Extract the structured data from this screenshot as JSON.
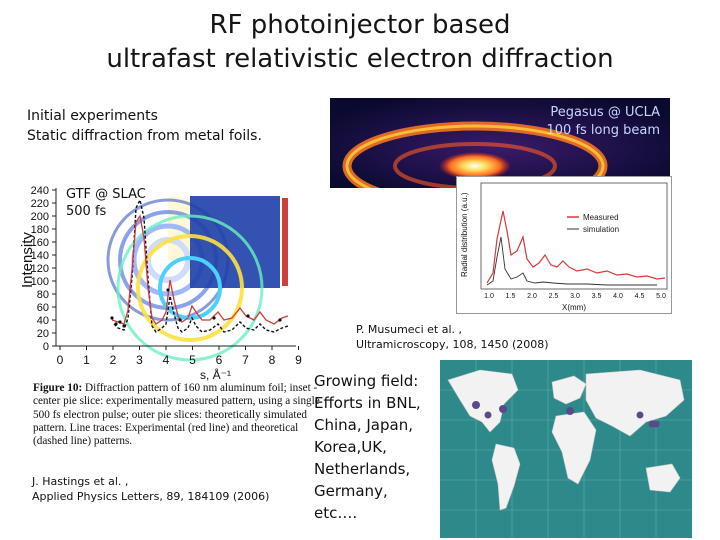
{
  "title": {
    "line1": "RF photoinjector based",
    "line2": "ultrafast relativistic electron diffraction"
  },
  "intro": {
    "line1": "Initial experiments",
    "line2": "Static diffraction from metal foils."
  },
  "beam_image": {
    "label_line1": "Pegasus @ UCLA",
    "label_line2": "100 fs long beam"
  },
  "radial_plot": {
    "ylabel": "Radial distribution (a.u.)",
    "xlabel": "X(mm)",
    "legend": [
      "Measured",
      "simulation"
    ],
    "xticks": [
      "1.0",
      "1.5",
      "2.0",
      "2.5",
      "3.0",
      "3.5",
      "4.0",
      "4.5",
      "5.0"
    ]
  },
  "intensity_plot": {
    "ylabel": "Intensity",
    "xlabel": "s, Å⁻¹",
    "yticks": [
      "0",
      "20",
      "40",
      "60",
      "80",
      "100",
      "120",
      "140",
      "160",
      "180",
      "200",
      "220",
      "240"
    ],
    "xticks": [
      "0",
      "1",
      "2",
      "3",
      "4",
      "5",
      "6",
      "7",
      "8",
      "9"
    ],
    "label_line1": "GTF @ SLAC",
    "label_line2": "500 fs"
  },
  "caption": {
    "bold": "Figure 10:",
    "text": " Diffraction pattern of 160 nm aluminum foil; inset - center pie slice: experimentally measured pattern, using a single 500 fs electron pulse; outer pie slices: theoretically simulated pattern.  Line traces: Experimental (red line) and theoretical (dashed line) patterns."
  },
  "ref_hastings": {
    "line1": "J. Hastings et al. ,",
    "line2": "Applied Physics Letters, 89, 184109 (2006)"
  },
  "ref_musumeci": {
    "line1": "P. Musumeci et al. ,",
    "line2": "Ultramicroscopy, 108, 1450 (2008)"
  },
  "growing": {
    "line1": "Growing field:",
    "line2": "Efforts in BNL,",
    "line3": "China, Japan,",
    "line4": "Korea,UK,",
    "line5": "Netherlands,",
    "line6": "Germany, etc…."
  },
  "colors": {
    "ocean": "#2e8a8a",
    "land": "#f2f2f2",
    "marker": "#5a4a8a",
    "experiment_line": "#d23a3a"
  }
}
